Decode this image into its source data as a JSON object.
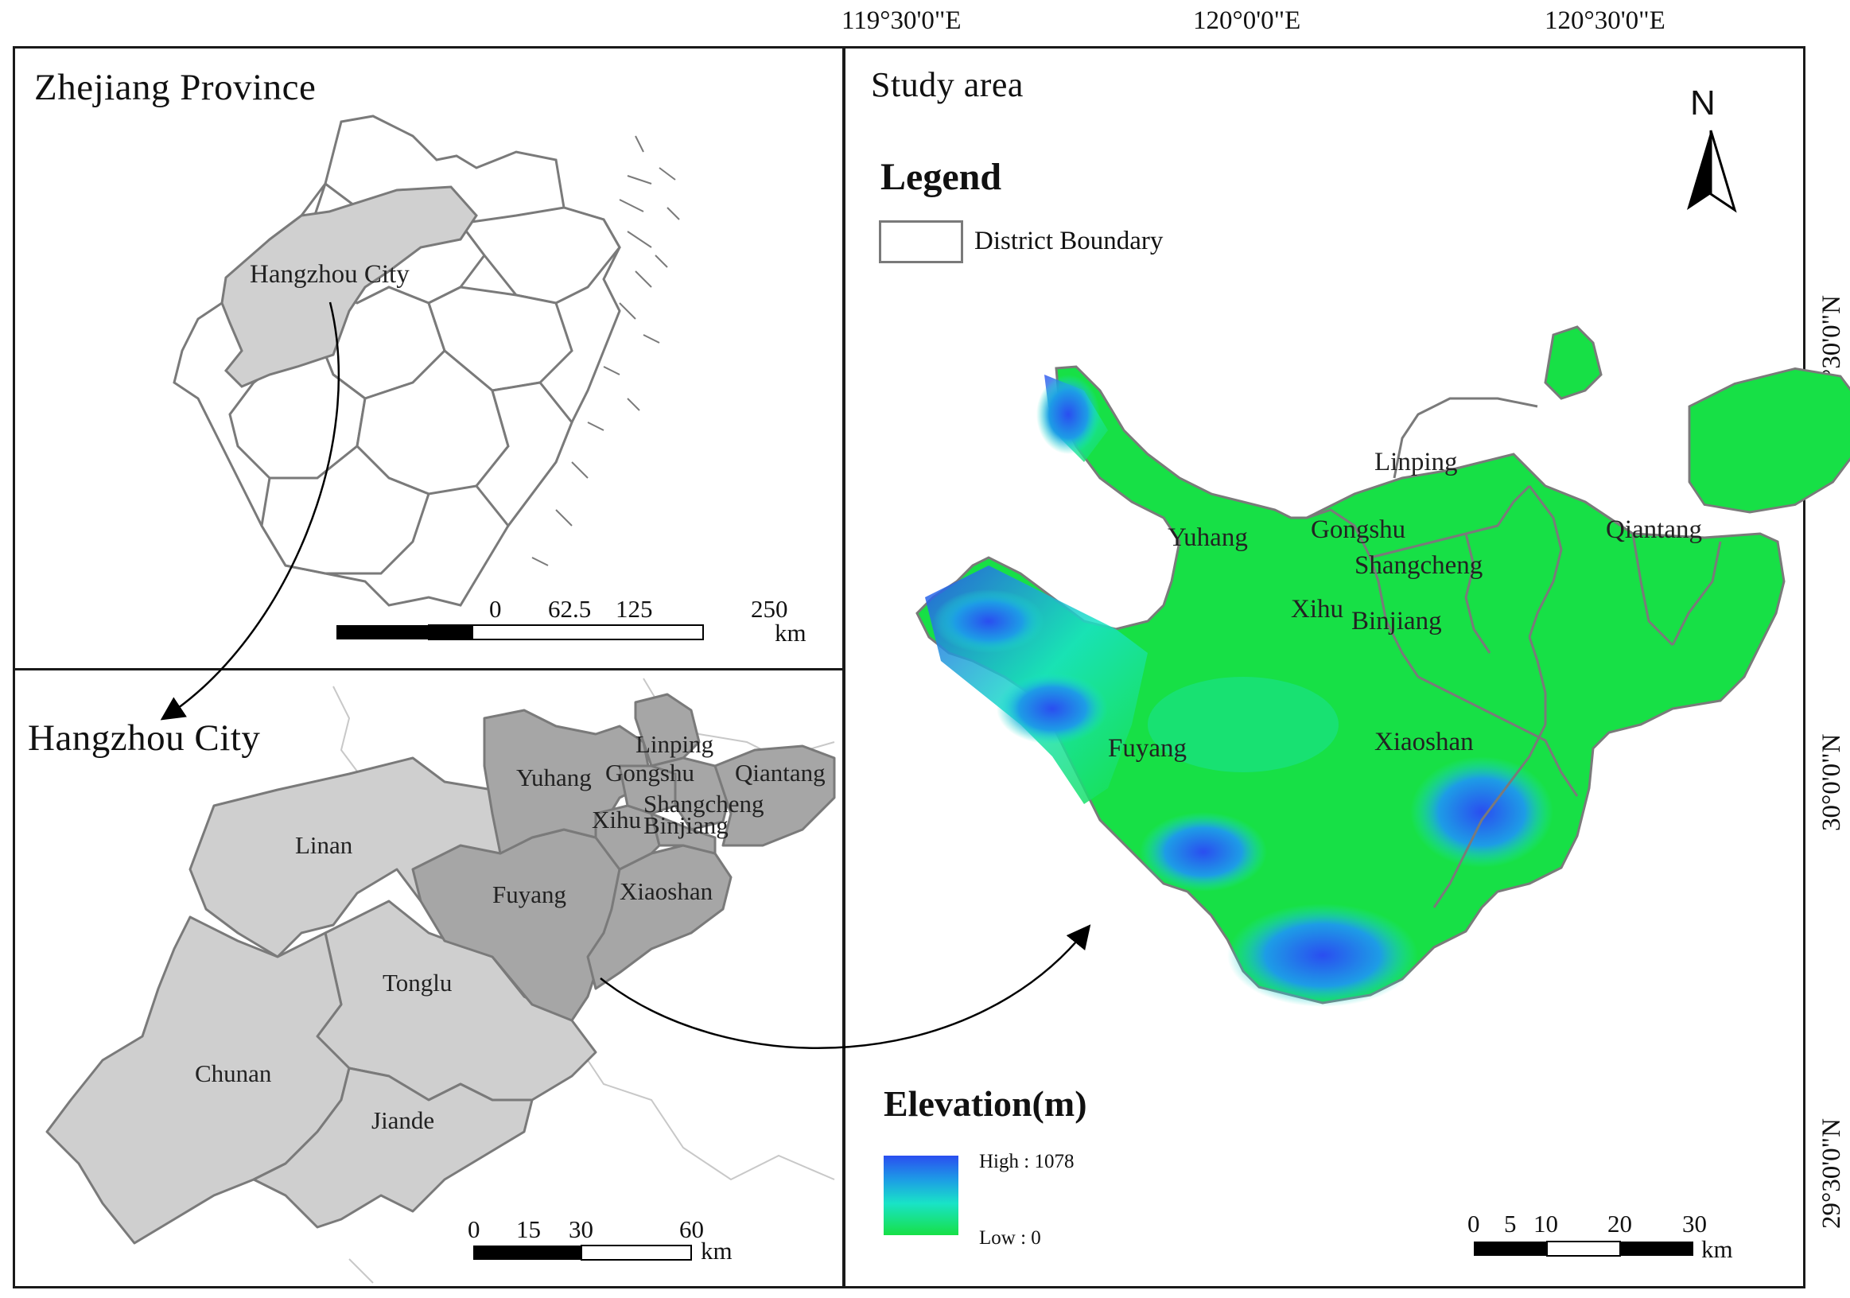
{
  "colors": {
    "frame": "#1a1a1a",
    "boundary": "#7a7a7a",
    "province_fill": "#ffffff",
    "hangzhou_fill": "#d0d0d0",
    "light_gray": "#cfcfcf",
    "dark_gray": "#a6a6a6",
    "elev_low": "#17e046",
    "elev_mid": "#19e3c7",
    "elev_high": "#2a4ef0"
  },
  "graticule": {
    "top_labels": [
      "119°30'0\"E",
      "120°0'0\"E",
      "120°30'0\"E"
    ],
    "right_labels": [
      "30°30'0\"N",
      "30°0'0\"N",
      "29°30'0\"N"
    ]
  },
  "zhejiang_panel": {
    "title": "Zhejiang Province",
    "highlight_label": "Hangzhou City",
    "scalebar": {
      "ticks": [
        "0",
        "62.5",
        "125",
        "250"
      ],
      "unit": "km"
    }
  },
  "hangzhou_panel": {
    "title": "Hangzhou City",
    "districts": [
      "Linping",
      "Yuhang",
      "Gongshu",
      "Qiantang",
      "Shangcheng",
      "Xihu",
      "Binjiang",
      "Linan",
      "Fuyang",
      "Xiaoshan",
      "Tonglu",
      "Chunan",
      "Jiande"
    ],
    "scalebar": {
      "ticks": [
        "0",
        "15",
        "30",
        "60"
      ],
      "unit": "km"
    }
  },
  "study_panel": {
    "title": "Study area",
    "north": "N",
    "legend_title": "Legend",
    "legend_item": "District Boundary",
    "districts": [
      "Linping",
      "Yuhang",
      "Gongshu",
      "Qiantang",
      "Shangcheng",
      "Xihu",
      "Binjiang",
      "Fuyang",
      "Xiaoshan"
    ],
    "elevation_title": "Elevation(m)",
    "elevation_high": "High : 1078",
    "elevation_low": "Low : 0",
    "scalebar": {
      "ticks": [
        "0",
        "5",
        "10",
        "20",
        "30"
      ],
      "unit": "km"
    }
  }
}
